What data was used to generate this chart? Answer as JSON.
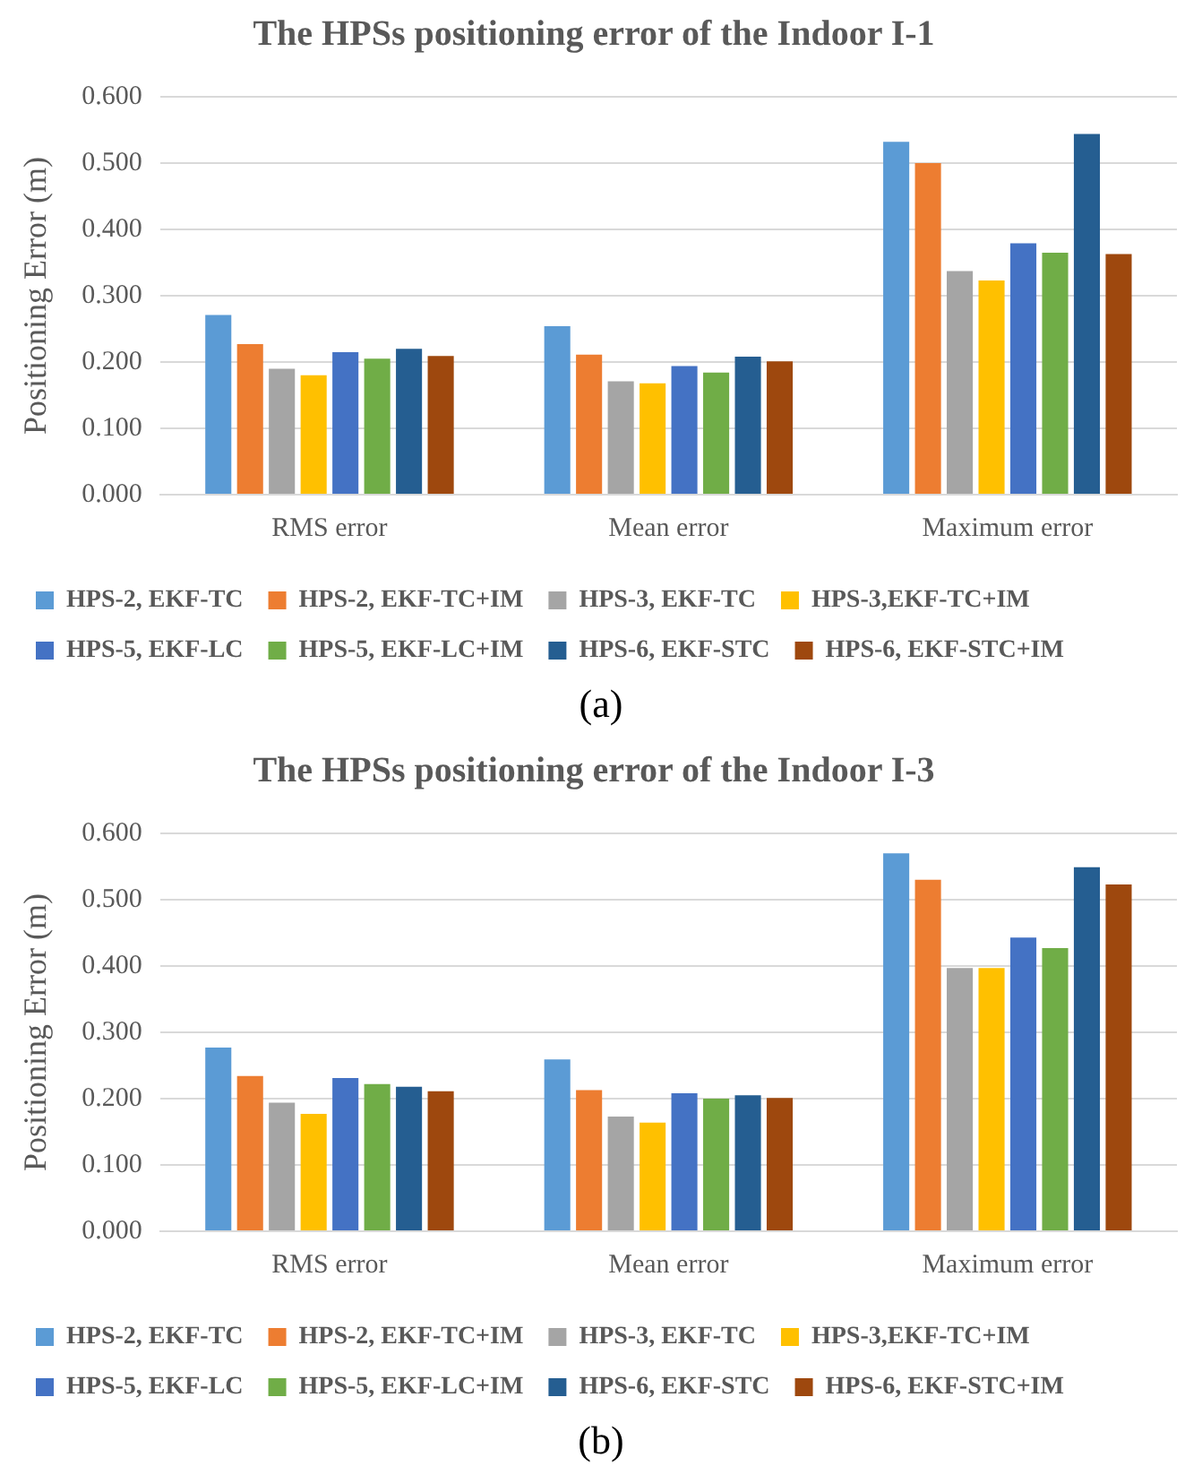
{
  "chart_data": [
    {
      "type": "bar",
      "title": "The HPSs positioning error of the Indoor I-1",
      "ylabel": "Positioning Error (m)",
      "categories": [
        "RMS error",
        "Mean error",
        "Maximum error"
      ],
      "series": [
        {
          "name": "HPS-2, EKF-TC",
          "color": "#5b9bd5",
          "values": [
            0.271,
            0.254,
            0.532
          ]
        },
        {
          "name": "HPS-2, EKF-TC+IM",
          "color": "#ed7d31",
          "values": [
            0.227,
            0.211,
            0.5
          ]
        },
        {
          "name": "HPS-3, EKF-TC",
          "color": "#a5a5a5",
          "values": [
            0.19,
            0.171,
            0.337
          ]
        },
        {
          "name": "HPS-3,EKF-TC+IM",
          "color": "#ffc000",
          "values": [
            0.18,
            0.168,
            0.323
          ]
        },
        {
          "name": "HPS-5, EKF-LC",
          "color": "#4472c4",
          "values": [
            0.215,
            0.194,
            0.379
          ]
        },
        {
          "name": "HPS-5, EKF-LC+IM",
          "color": "#70ad47",
          "values": [
            0.205,
            0.184,
            0.365
          ]
        },
        {
          "name": "HPS-6, EKF-STC",
          "color": "#255e91",
          "values": [
            0.22,
            0.208,
            0.544
          ]
        },
        {
          "name": "HPS-6, EKF-STC+IM",
          "color": "#9e480e",
          "values": [
            0.209,
            0.201,
            0.363
          ]
        }
      ],
      "ylim": [
        0,
        0.6
      ],
      "yticks": [
        {
          "value": 0,
          "label": "0.000"
        },
        {
          "value": 0.1,
          "label": "0.100"
        },
        {
          "value": 0.2,
          "label": "0.200"
        },
        {
          "value": 0.3,
          "label": "0.300"
        },
        {
          "value": 0.4,
          "label": "0.400"
        },
        {
          "value": 0.5,
          "label": "0.500"
        },
        {
          "value": 0.6,
          "label": "0.600"
        }
      ],
      "grid": "y",
      "legend": "bottom",
      "annotations": [
        "(a)"
      ]
    },
    {
      "type": "bar",
      "title": "The HPSs positioning error of the Indoor I-3",
      "ylabel": "Positioning Error (m)",
      "categories": [
        "RMS error",
        "Mean error",
        "Maximum error"
      ],
      "series": [
        {
          "name": "HPS-2, EKF-TC",
          "color": "#5b9bd5",
          "values": [
            0.277,
            0.259,
            0.57
          ]
        },
        {
          "name": "HPS-2, EKF-TC+IM",
          "color": "#ed7d31",
          "values": [
            0.234,
            0.213,
            0.53
          ]
        },
        {
          "name": "HPS-3, EKF-TC",
          "color": "#a5a5a5",
          "values": [
            0.194,
            0.173,
            0.397
          ]
        },
        {
          "name": "HPS-3,EKF-TC+IM",
          "color": "#ffc000",
          "values": [
            0.177,
            0.164,
            0.397
          ]
        },
        {
          "name": "HPS-5, EKF-LC",
          "color": "#4472c4",
          "values": [
            0.231,
            0.208,
            0.443
          ]
        },
        {
          "name": "HPS-5, EKF-LC+IM",
          "color": "#70ad47",
          "values": [
            0.222,
            0.2,
            0.427
          ]
        },
        {
          "name": "HPS-6, EKF-STC",
          "color": "#255e91",
          "values": [
            0.218,
            0.205,
            0.549
          ]
        },
        {
          "name": "HPS-6, EKF-STC+IM",
          "color": "#9e480e",
          "values": [
            0.211,
            0.201,
            0.523
          ]
        }
      ],
      "ylim": [
        0,
        0.6
      ],
      "yticks": [
        {
          "value": 0,
          "label": "0.000"
        },
        {
          "value": 0.1,
          "label": "0.100"
        },
        {
          "value": 0.2,
          "label": "0.200"
        },
        {
          "value": 0.3,
          "label": "0.300"
        },
        {
          "value": 0.4,
          "label": "0.400"
        },
        {
          "value": 0.5,
          "label": "0.500"
        },
        {
          "value": 0.6,
          "label": "0.600"
        }
      ],
      "grid": "y",
      "legend": "bottom",
      "annotations": [
        "(b)"
      ]
    }
  ]
}
